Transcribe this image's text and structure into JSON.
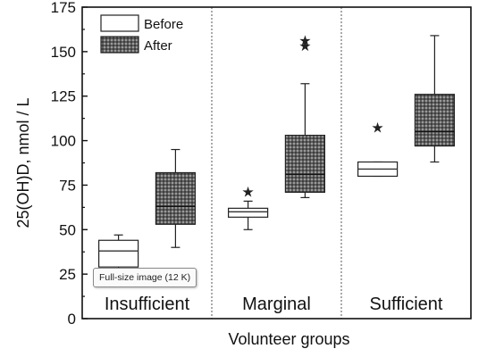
{
  "chart_data": {
    "type": "box",
    "xlabel": "Volunteer groups",
    "ylabel": "25(OH)D, nmol / L",
    "ylim": [
      0,
      175
    ],
    "yticks": [
      0,
      25,
      50,
      75,
      100,
      125,
      150,
      175
    ],
    "ytick_labels": [
      "0",
      "25",
      "50",
      "75",
      "100",
      "125",
      "150",
      "175"
    ],
    "categories": [
      "Insufficient",
      "Marginal",
      "Sufficient"
    ],
    "legend": {
      "placement": "top-left",
      "entries": [
        "Before",
        "After"
      ]
    },
    "series": [
      {
        "name": "Before",
        "fill": "#ffffff",
        "boxes": [
          {
            "group": "Insufficient",
            "whisker_low": 22,
            "q1": 29,
            "median": 38,
            "q3": 44,
            "whisker_high": 47,
            "outliers": []
          },
          {
            "group": "Marginal",
            "whisker_low": 50,
            "q1": 57,
            "median": 60,
            "q3": 62,
            "whisker_high": 66,
            "outliers": [
              72
            ]
          },
          {
            "group": "Sufficient",
            "whisker_low": 80,
            "q1": 80,
            "median": 84,
            "q3": 88,
            "whisker_high": 88,
            "outliers": [
              108
            ]
          }
        ]
      },
      {
        "name": "After",
        "fill": "#6e6e6e",
        "boxes": [
          {
            "group": "Insufficient",
            "whisker_low": 40,
            "q1": 53,
            "median": 63,
            "q3": 82,
            "whisker_high": 95,
            "outliers": []
          },
          {
            "group": "Marginal",
            "whisker_low": 68,
            "q1": 71,
            "median": 81,
            "q3": 103,
            "whisker_high": 132,
            "outliers": [
              154,
              157
            ]
          },
          {
            "group": "Sufficient",
            "whisker_low": 88,
            "q1": 97,
            "median": 105,
            "q3": 126,
            "whisker_high": 159,
            "outliers": []
          }
        ]
      }
    ]
  },
  "tooltip": {
    "text": "Full-size image (12 K)"
  }
}
